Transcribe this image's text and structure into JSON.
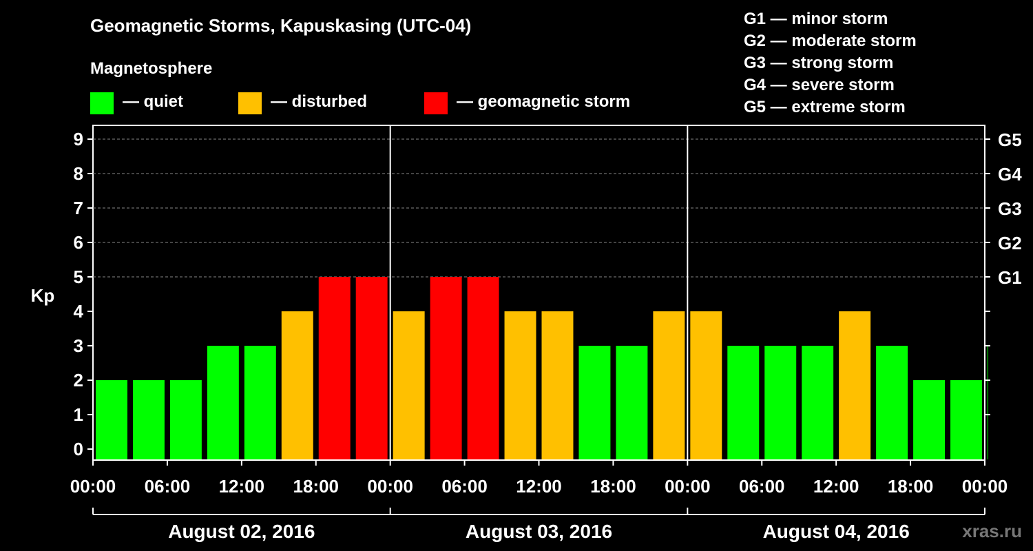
{
  "title": "Geomagnetic Storms, Kapuskasing (UTC-04)",
  "subtitle": "Magnetosphere",
  "legend": [
    {
      "label": "— quiet",
      "color": "#00ff00"
    },
    {
      "label": "— disturbed",
      "color": "#ffc000"
    },
    {
      "label": "— geomagnetic storm",
      "color": "#ff0000"
    }
  ],
  "g_scale": [
    "G1 — minor storm",
    "G2 — moderate storm",
    "G3 — strong storm",
    "G4 — severe storm",
    "G5 — extreme storm"
  ],
  "watermark": "xras.ru",
  "chart_data": {
    "type": "bar",
    "ylabel": "Kp",
    "ylim": [
      0,
      9
    ],
    "y_ticks": [
      "0",
      "1",
      "2",
      "3",
      "4",
      "5",
      "6",
      "7",
      "8",
      "9"
    ],
    "right_axis": [
      {
        "label": "G1",
        "kp": 5
      },
      {
        "label": "G2",
        "kp": 6
      },
      {
        "label": "G3",
        "kp": 7
      },
      {
        "label": "G4",
        "kp": 8
      },
      {
        "label": "G5",
        "kp": 9
      }
    ],
    "x_ticks": [
      "00:00",
      "06:00",
      "12:00",
      "18:00",
      "00:00",
      "06:00",
      "12:00",
      "18:00",
      "00:00",
      "06:00",
      "12:00",
      "18:00",
      "00:00"
    ],
    "days": [
      "August 02, 2016",
      "August 03, 2016",
      "August 04, 2016"
    ],
    "grid": "dashed horizontal at 5-9",
    "values": [
      2,
      2,
      2,
      3,
      3,
      4,
      5,
      5,
      4,
      5,
      5,
      4,
      4,
      3,
      3,
      4,
      4,
      3,
      3,
      3,
      4,
      3,
      2,
      2,
      3
    ],
    "colors": {
      "quiet": "#00ff00",
      "disturbed": "#ffc000",
      "storm": "#ff0000"
    }
  }
}
